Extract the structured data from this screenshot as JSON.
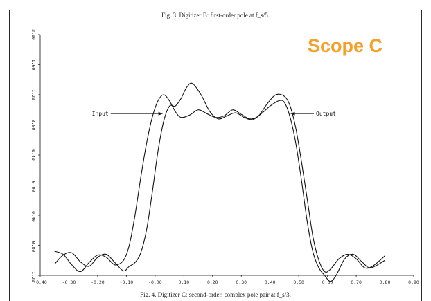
{
  "captions": {
    "top": "Fig. 3.  Digitizer B: first-order pole at f_s/5.",
    "bottom": "Fig. 4.  Digitizer C: second-order, complex pole pair at f_s/3."
  },
  "overlay_title": "Scope C",
  "colors": {
    "accent": "#f4a12a",
    "ink": "#111111"
  },
  "chart_data": {
    "type": "line",
    "title": "",
    "xlabel": "",
    "ylabel": "",
    "xlim": [
      -0.4,
      0.9
    ],
    "ylim": [
      -1.2,
      2.0
    ],
    "x_ticks": [
      -0.4,
      -0.3,
      -0.2,
      -0.1,
      0.0,
      0.1,
      0.2,
      0.3,
      0.4,
      0.5,
      0.6,
      0.7,
      0.8,
      0.9
    ],
    "x_tick_labels": [
      "-0.40",
      "-0.30",
      "-0.20",
      "-0.10",
      "-0.00",
      "0.10",
      "0.20",
      "0.30",
      "0.40",
      "0.50",
      "0.60",
      "0.70",
      "0.80",
      "0.90"
    ],
    "y_ticks": [
      2.0,
      1.6,
      1.2,
      0.8,
      0.4,
      0.0,
      -0.4,
      -0.8,
      -1.2
    ],
    "y_tick_labels": [
      "2.00",
      "1.60",
      "1.20",
      "0.80",
      "0.40",
      "-0.00",
      "-0.40",
      "-0.80",
      "-1.20"
    ],
    "grid": false,
    "annotations": [
      {
        "text": "Input",
        "x": -0.22,
        "y": 0.95,
        "arrow_to": [
          0.026,
          0.95
        ],
        "side": "left"
      },
      {
        "text": "Output",
        "x": 0.56,
        "y": 0.95,
        "arrow_to": [
          0.472,
          0.95
        ],
        "side": "right"
      }
    ],
    "series": [
      {
        "name": "Input",
        "x": [
          -0.35,
          -0.32,
          -0.29,
          -0.26,
          -0.23,
          -0.2,
          -0.17,
          -0.14,
          -0.11,
          -0.09,
          -0.07,
          -0.05,
          -0.03,
          -0.01,
          0.01,
          0.03,
          0.05,
          0.07,
          0.09,
          0.12,
          0.15,
          0.18,
          0.21,
          0.24,
          0.27,
          0.3,
          0.33,
          0.36,
          0.39,
          0.42,
          0.45,
          0.47,
          0.49,
          0.51,
          0.53,
          0.55,
          0.57,
          0.59,
          0.61,
          0.64,
          0.67,
          0.7,
          0.73,
          0.76,
          0.8
        ],
        "y": [
          -0.88,
          -0.92,
          -1.06,
          -1.15,
          -1.03,
          -0.93,
          -0.96,
          -1.06,
          -1.0,
          -0.8,
          -0.4,
          0.1,
          0.55,
          0.9,
          1.12,
          1.2,
          1.12,
          0.98,
          0.9,
          0.93,
          1.0,
          0.95,
          0.9,
          0.92,
          1.0,
          0.94,
          0.88,
          0.92,
          1.08,
          1.2,
          1.18,
          1.05,
          0.75,
          0.3,
          -0.2,
          -0.7,
          -1.0,
          -1.15,
          -1.12,
          -0.98,
          -0.92,
          -0.98,
          -1.1,
          -1.07,
          -0.94
        ]
      },
      {
        "name": "Output",
        "x": [
          -0.35,
          -0.32,
          -0.29,
          -0.26,
          -0.23,
          -0.2,
          -0.17,
          -0.14,
          -0.11,
          -0.09,
          -0.07,
          -0.05,
          -0.03,
          -0.01,
          0.01,
          0.03,
          0.05,
          0.07,
          0.09,
          0.11,
          0.13,
          0.16,
          0.19,
          0.22,
          0.25,
          0.28,
          0.31,
          0.34,
          0.37,
          0.4,
          0.43,
          0.45,
          0.47,
          0.49,
          0.51,
          0.53,
          0.55,
          0.57,
          0.59,
          0.61,
          0.63,
          0.66,
          0.69,
          0.72,
          0.75,
          0.8
        ],
        "y": [
          -1.05,
          -0.93,
          -0.9,
          -1.02,
          -1.08,
          -0.96,
          -0.92,
          -1.03,
          -1.14,
          -1.08,
          -1.03,
          -0.9,
          -0.6,
          -0.1,
          0.45,
          0.85,
          1.05,
          1.05,
          1.15,
          1.3,
          1.35,
          1.2,
          0.98,
          0.88,
          0.92,
          0.96,
          0.9,
          0.87,
          0.95,
          1.05,
          1.12,
          1.1,
          0.9,
          0.55,
          0.05,
          -0.5,
          -0.9,
          -1.1,
          -1.2,
          -1.28,
          -1.2,
          -0.98,
          -0.92,
          -1.02,
          -1.1,
          -1.0
        ]
      }
    ]
  }
}
